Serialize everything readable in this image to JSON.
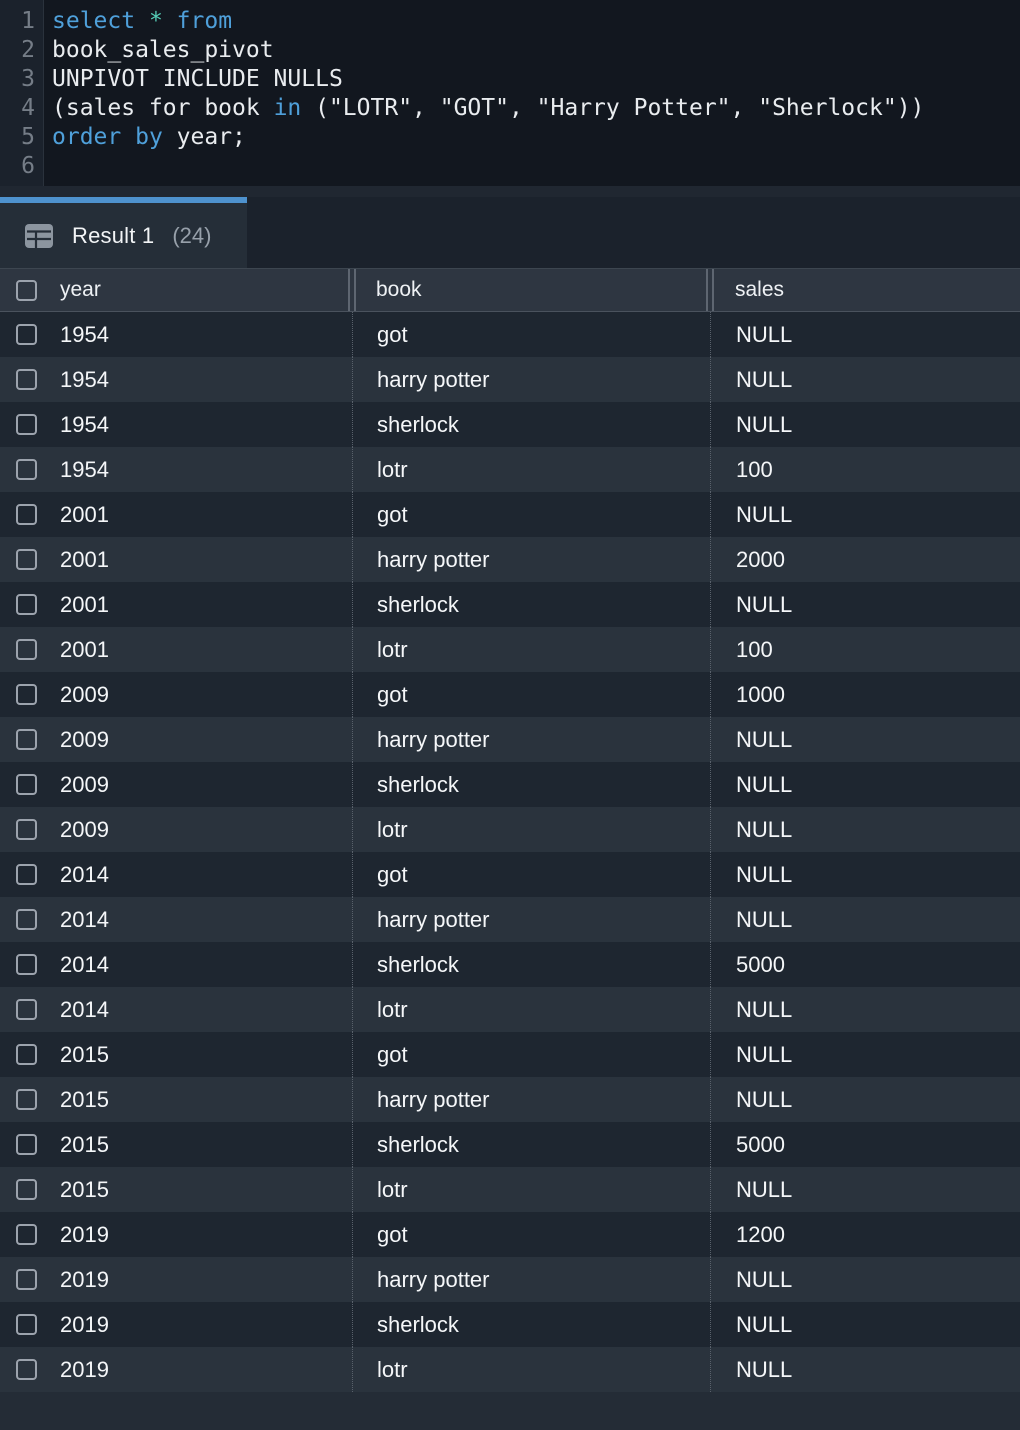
{
  "editor": {
    "lines": [
      {
        "num": "1",
        "tokens": [
          {
            "text": "select",
            "type": "keyword"
          },
          {
            "text": " ",
            "type": "plain"
          },
          {
            "text": "*",
            "type": "star"
          },
          {
            "text": " ",
            "type": "plain"
          },
          {
            "text": "from",
            "type": "keyword"
          }
        ]
      },
      {
        "num": "2",
        "tokens": [
          {
            "text": "book_sales_pivot",
            "type": "plain"
          }
        ]
      },
      {
        "num": "3",
        "tokens": [
          {
            "text": "UNPIVOT INCLUDE NULLS",
            "type": "plain"
          }
        ]
      },
      {
        "num": "4",
        "tokens": [
          {
            "text": "(sales for book ",
            "type": "plain"
          },
          {
            "text": "in",
            "type": "keyword"
          },
          {
            "text": " (\"LOTR\", \"GOT\", \"Harry Potter\", \"Sherlock\"))",
            "type": "plain"
          }
        ]
      },
      {
        "num": "5",
        "tokens": [
          {
            "text": "order",
            "type": "keyword"
          },
          {
            "text": " ",
            "type": "plain"
          },
          {
            "text": "by",
            "type": "keyword"
          },
          {
            "text": " ",
            "type": "plain"
          },
          {
            "text": "year;",
            "type": "plain"
          }
        ]
      },
      {
        "num": "6",
        "tokens": []
      }
    ]
  },
  "results": {
    "tab": {
      "icon": "table-grid-icon",
      "label": "Result 1",
      "count": "(24)"
    },
    "columns": [
      "year",
      "book",
      "sales"
    ],
    "rows": [
      [
        "1954",
        "got",
        "NULL"
      ],
      [
        "1954",
        "harry potter",
        "NULL"
      ],
      [
        "1954",
        "sherlock",
        "NULL"
      ],
      [
        "1954",
        "lotr",
        "100"
      ],
      [
        "2001",
        "got",
        "NULL"
      ],
      [
        "2001",
        "harry potter",
        "2000"
      ],
      [
        "2001",
        "sherlock",
        "NULL"
      ],
      [
        "2001",
        "lotr",
        "100"
      ],
      [
        "2009",
        "got",
        "1000"
      ],
      [
        "2009",
        "harry potter",
        "NULL"
      ],
      [
        "2009",
        "sherlock",
        "NULL"
      ],
      [
        "2009",
        "lotr",
        "NULL"
      ],
      [
        "2014",
        "got",
        "NULL"
      ],
      [
        "2014",
        "harry potter",
        "NULL"
      ],
      [
        "2014",
        "sherlock",
        "5000"
      ],
      [
        "2014",
        "lotr",
        "NULL"
      ],
      [
        "2015",
        "got",
        "NULL"
      ],
      [
        "2015",
        "harry potter",
        "NULL"
      ],
      [
        "2015",
        "sherlock",
        "5000"
      ],
      [
        "2015",
        "lotr",
        "NULL"
      ],
      [
        "2019",
        "got",
        "1200"
      ],
      [
        "2019",
        "harry potter",
        "NULL"
      ],
      [
        "2019",
        "sherlock",
        "NULL"
      ],
      [
        "2019",
        "lotr",
        "NULL"
      ]
    ]
  },
  "colors": {
    "accent_tab_blue": "#4E92CE",
    "keyword_blue": "#4FA0DA",
    "star_teal": "#56CEB8",
    "editor_bg": "#12171F",
    "row_odd": "#1E2630",
    "row_even": "#2A333D",
    "header_bg": "#2E3641"
  }
}
